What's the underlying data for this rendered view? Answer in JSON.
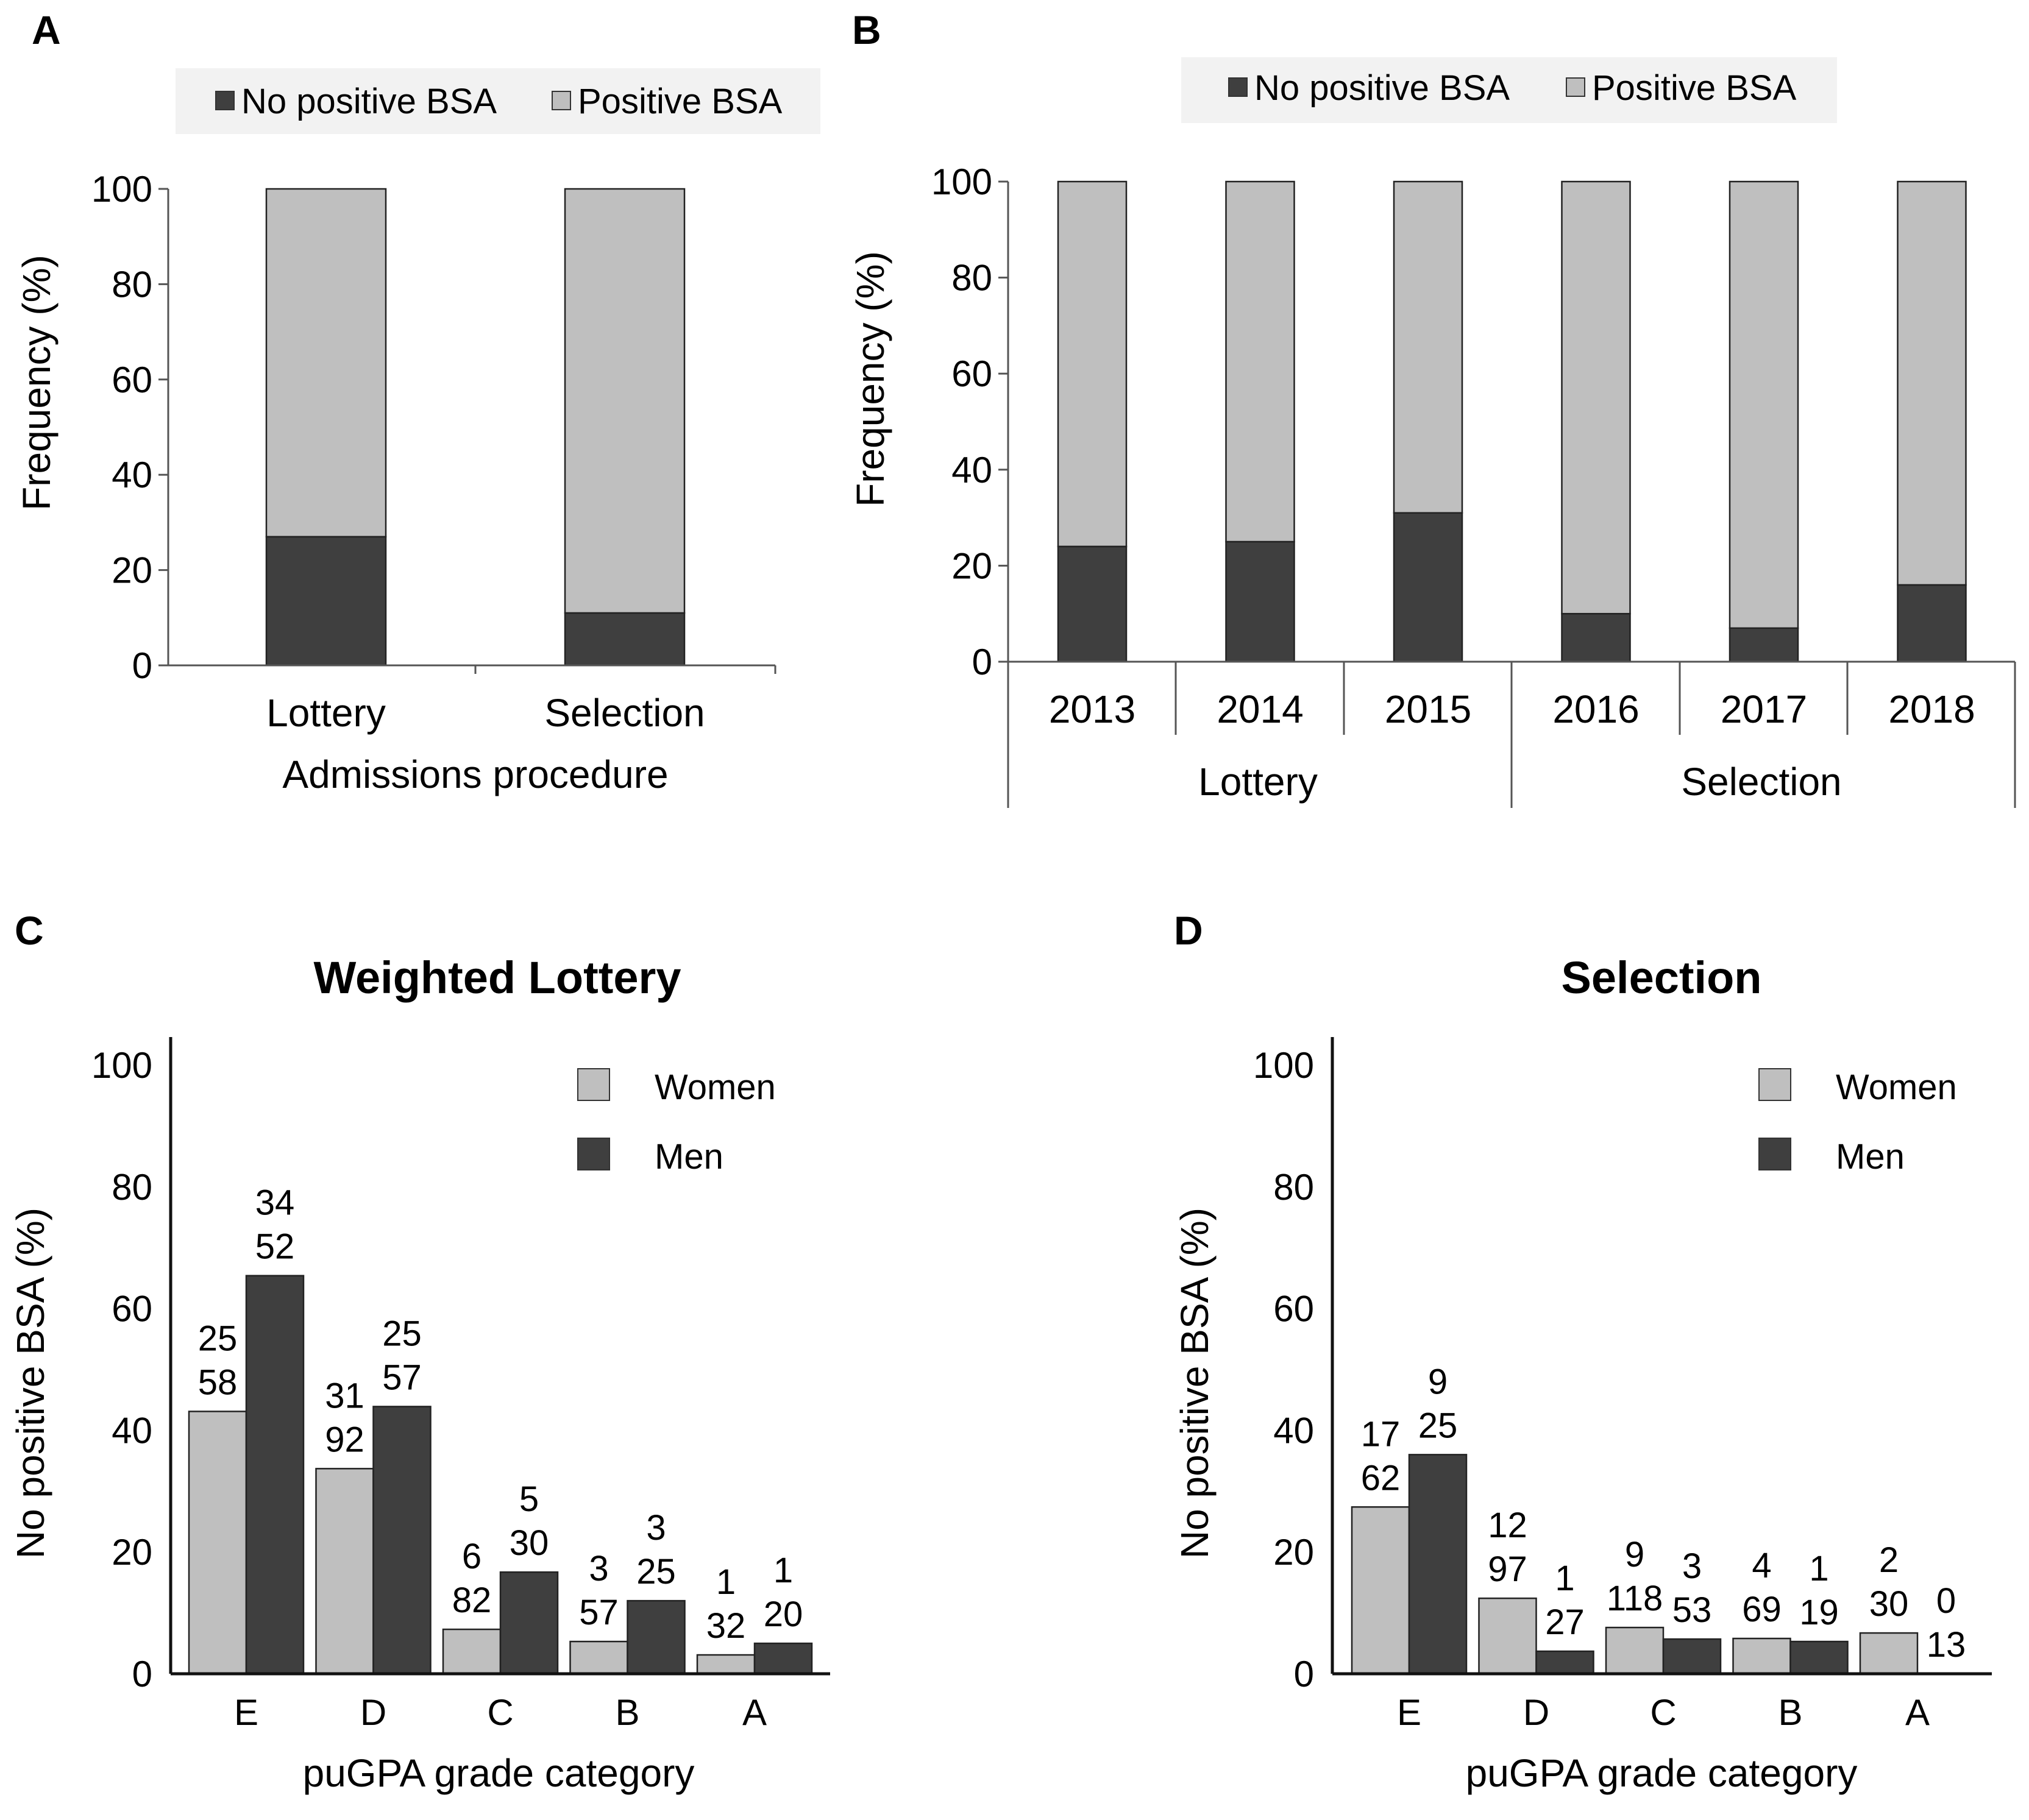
{
  "colors": {
    "dark": "#3f3f3f",
    "light": "#bfbfbf",
    "legend_bg": "#f2f2f2",
    "axis": "#555555"
  },
  "panel_a": {
    "letter": "A",
    "legend": [
      "No positive BSA",
      "Positive BSA"
    ],
    "ylabel": "Frequency (%)",
    "xlabel": "Admissions procedure"
  },
  "panel_b": {
    "letter": "B",
    "legend": [
      "No positive BSA",
      "Positive BSA"
    ],
    "ylabel": "Frequency (%)",
    "groups": [
      "Lottery",
      "Selection"
    ]
  },
  "panel_c": {
    "letter": "C",
    "title": "Weighted Lottery",
    "legend": [
      "Women",
      "Men"
    ],
    "ylabel": "No positive BSA (%)",
    "xlabel": "puGPA grade category"
  },
  "panel_d": {
    "letter": "D",
    "title": "Selection",
    "legend": [
      "Women",
      "Men"
    ],
    "ylabel": "No positive BSA (%)",
    "xlabel": "puGPA grade category"
  },
  "chart_data": [
    {
      "id": "A",
      "type": "bar",
      "stacked": true,
      "categories": [
        "Lottery",
        "Selection"
      ],
      "series": [
        {
          "name": "No positive BSA",
          "values": [
            27,
            11
          ]
        },
        {
          "name": "Positive BSA",
          "values": [
            73,
            89
          ]
        }
      ],
      "ylim": [
        0,
        100
      ],
      "yticks": [
        0,
        20,
        40,
        60,
        80,
        100
      ],
      "xlabel": "Admissions procedure",
      "ylabel": "Frequency (%)"
    },
    {
      "id": "B",
      "type": "bar",
      "stacked": true,
      "categories": [
        "2013",
        "2014",
        "2015",
        "2016",
        "2017",
        "2018"
      ],
      "groups": [
        {
          "name": "Lottery",
          "categories": [
            "2013",
            "2014",
            "2015"
          ]
        },
        {
          "name": "Selection",
          "categories": [
            "2016",
            "2017",
            "2018"
          ]
        }
      ],
      "series": [
        {
          "name": "No positive BSA",
          "values": [
            24,
            25,
            31,
            10,
            7,
            16
          ]
        },
        {
          "name": "Positive BSA",
          "values": [
            76,
            75,
            69,
            90,
            93,
            84
          ]
        }
      ],
      "ylim": [
        0,
        100
      ],
      "yticks": [
        0,
        20,
        40,
        60,
        80,
        100
      ],
      "ylabel": "Frequency (%)"
    },
    {
      "id": "C",
      "type": "bar",
      "title": "Weighted Lottery",
      "categories": [
        "E",
        "D",
        "C",
        "B",
        "A"
      ],
      "series": [
        {
          "name": "Women",
          "values": [
            43.1,
            33.7,
            7.3,
            5.3,
            3.1
          ],
          "counts": [
            "25",
            "31",
            "6",
            "3",
            "1"
          ],
          "totals": [
            "58",
            "92",
            "82",
            "57",
            "32"
          ]
        },
        {
          "name": "Men",
          "values": [
            65.4,
            43.9,
            16.7,
            12.0,
            5.0
          ],
          "counts": [
            "34",
            "25",
            "5",
            "3",
            "1"
          ],
          "totals": [
            "52",
            "57",
            "30",
            "25",
            "20"
          ]
        }
      ],
      "ylim": [
        0,
        100
      ],
      "yticks": [
        0,
        20,
        40,
        60,
        80,
        100
      ],
      "xlabel": "puGPA grade category",
      "ylabel": "No positive BSA (%)"
    },
    {
      "id": "D",
      "type": "bar",
      "title": "Selection",
      "categories": [
        "E",
        "D",
        "C",
        "B",
        "A"
      ],
      "series": [
        {
          "name": "Women",
          "values": [
            27.4,
            12.4,
            7.6,
            5.8,
            6.7
          ],
          "counts": [
            "17",
            "12",
            "9",
            "4",
            "2"
          ],
          "totals": [
            "62",
            "97",
            "118",
            "69",
            "30"
          ]
        },
        {
          "name": "Men",
          "values": [
            36.0,
            3.7,
            5.7,
            5.3,
            0
          ],
          "counts": [
            "9",
            "1",
            "3",
            "1",
            "0"
          ],
          "totals": [
            "25",
            "27",
            "53",
            "19",
            "13"
          ]
        }
      ],
      "ylim": [
        0,
        100
      ],
      "yticks": [
        0,
        20,
        40,
        60,
        80,
        100
      ],
      "xlabel": "puGPA grade category",
      "ylabel": "No positive BSA (%)"
    }
  ]
}
